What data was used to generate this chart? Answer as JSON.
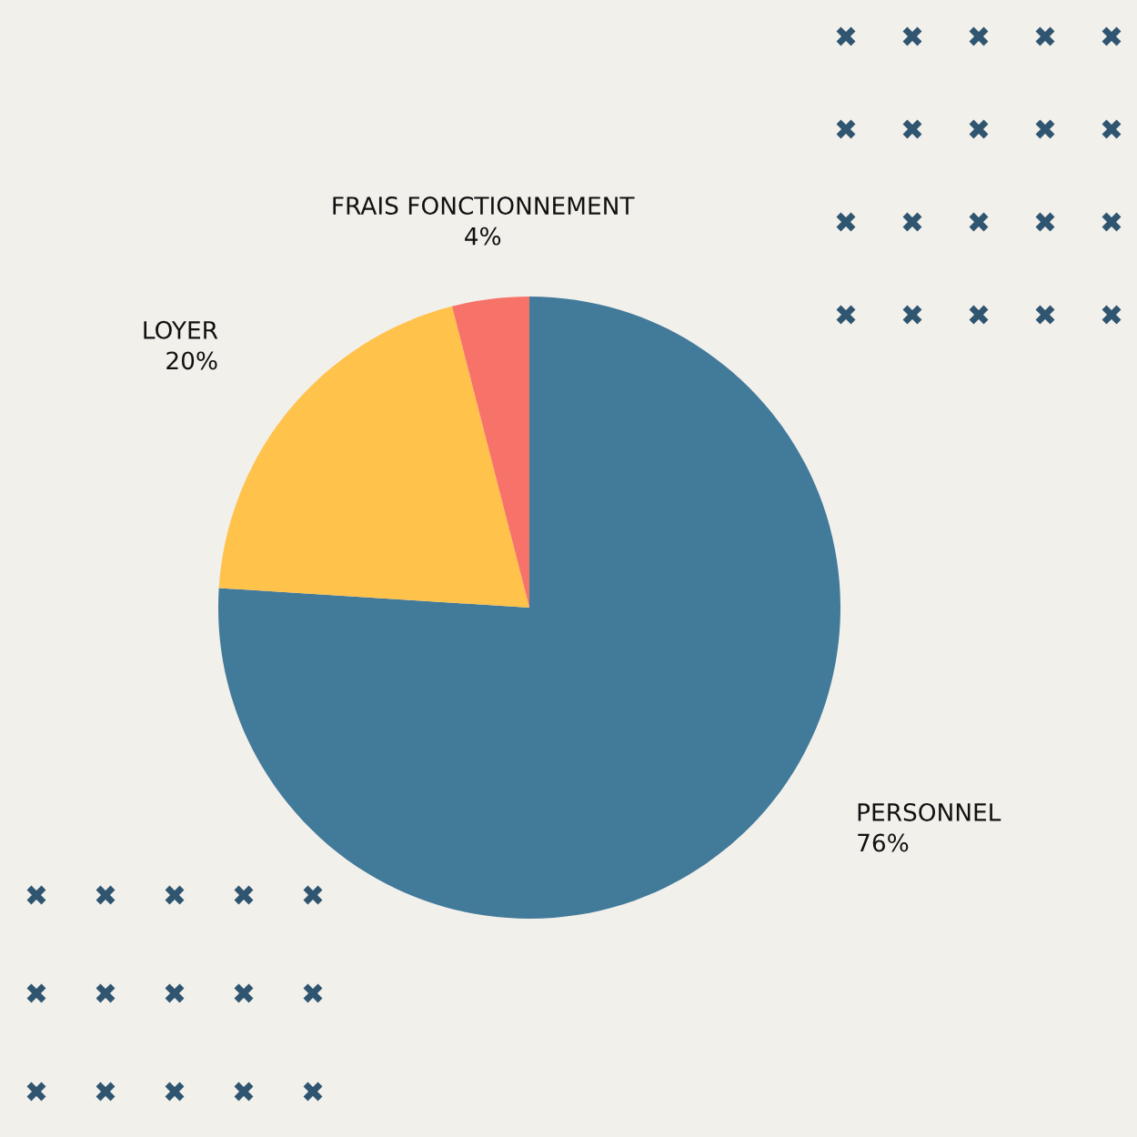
{
  "chart_data": {
    "type": "pie",
    "categories": [
      "PERSONNEL",
      "LOYER",
      "FRAIS FONCTIONNEMENT"
    ],
    "values": [
      76,
      20,
      4
    ],
    "colors": [
      "#427a9a",
      "#ffc24b",
      "#f7736a"
    ],
    "value_labels": [
      "76%",
      "20%",
      "4%"
    ]
  }
}
